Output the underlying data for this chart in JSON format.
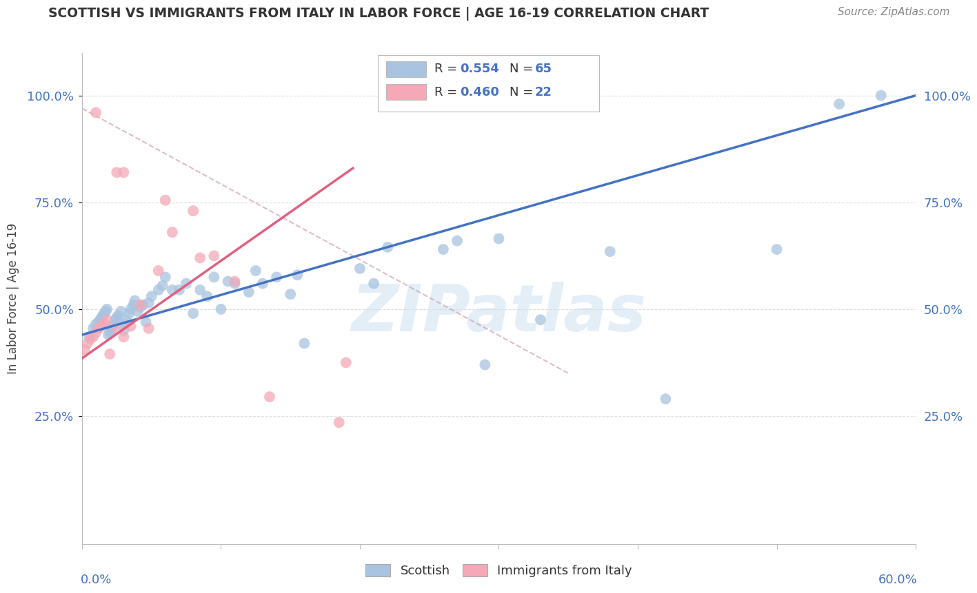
{
  "title": "SCOTTISH VS IMMIGRANTS FROM ITALY IN LABOR FORCE | AGE 16-19 CORRELATION CHART",
  "source": "Source: ZipAtlas.com",
  "ylabel": "In Labor Force | Age 16-19",
  "watermark": "ZIPatlas",
  "legend_r_scottish": "0.554",
  "legend_n_scottish": "65",
  "legend_r_italy": "0.460",
  "legend_n_italy": "22",
  "scottish_color": "#a8c4e0",
  "italy_color": "#f4a8b8",
  "line_blue": "#4472c4",
  "line_pink": "#e06080",
  "line_dashed_color": "#d0a0b0",
  "xlim": [
    0.0,
    0.6
  ],
  "ylim": [
    -0.05,
    1.1
  ],
  "blue_line_x0": 0.0,
  "blue_line_y0": 0.44,
  "blue_line_x1": 0.6,
  "blue_line_y1": 1.0,
  "pink_line_x0": 0.0,
  "pink_line_y0": 0.385,
  "pink_line_x1": 0.195,
  "pink_line_y1": 0.83,
  "dashed_line_x0": 0.0,
  "dashed_line_y0": 0.97,
  "dashed_line_x1": 0.35,
  "dashed_line_y1": 0.35,
  "scottish_x": [
    0.005,
    0.008,
    0.01,
    0.012,
    0.013,
    0.014,
    0.015,
    0.016,
    0.017,
    0.018,
    0.019,
    0.02,
    0.021,
    0.022,
    0.023,
    0.024,
    0.025,
    0.026,
    0.028,
    0.03,
    0.031,
    0.032,
    0.034,
    0.035,
    0.037,
    0.038,
    0.04,
    0.042,
    0.044,
    0.046,
    0.048,
    0.05,
    0.055,
    0.058,
    0.06,
    0.065,
    0.07,
    0.075,
    0.08,
    0.085,
    0.09,
    0.095,
    0.1,
    0.105,
    0.11,
    0.12,
    0.125,
    0.13,
    0.14,
    0.15,
    0.155,
    0.16,
    0.2,
    0.21,
    0.22,
    0.26,
    0.27,
    0.29,
    0.3,
    0.33,
    0.38,
    0.42,
    0.5,
    0.545,
    0.575
  ],
  "scottish_y": [
    0.435,
    0.455,
    0.465,
    0.47,
    0.475,
    0.48,
    0.485,
    0.49,
    0.495,
    0.5,
    0.44,
    0.445,
    0.45,
    0.46,
    0.465,
    0.475,
    0.48,
    0.485,
    0.495,
    0.45,
    0.465,
    0.475,
    0.49,
    0.5,
    0.51,
    0.52,
    0.495,
    0.505,
    0.51,
    0.47,
    0.515,
    0.53,
    0.545,
    0.555,
    0.575,
    0.545,
    0.545,
    0.56,
    0.49,
    0.545,
    0.53,
    0.575,
    0.5,
    0.565,
    0.56,
    0.54,
    0.59,
    0.56,
    0.575,
    0.535,
    0.58,
    0.42,
    0.595,
    0.56,
    0.645,
    0.64,
    0.66,
    0.37,
    0.665,
    0.475,
    0.635,
    0.29,
    0.64,
    0.98,
    1.0
  ],
  "italy_x": [
    0.002,
    0.004,
    0.006,
    0.008,
    0.01,
    0.012,
    0.014,
    0.016,
    0.018,
    0.02,
    0.025,
    0.03,
    0.035,
    0.042,
    0.048,
    0.055,
    0.065,
    0.08,
    0.095,
    0.11,
    0.135,
    0.19
  ],
  "italy_y": [
    0.405,
    0.42,
    0.43,
    0.435,
    0.445,
    0.455,
    0.46,
    0.465,
    0.475,
    0.395,
    0.455,
    0.435,
    0.46,
    0.51,
    0.455,
    0.59,
    0.68,
    0.73,
    0.625,
    0.565,
    0.295,
    0.375
  ],
  "italy_x_extra": [
    0.01,
    0.025,
    0.03,
    0.06,
    0.085,
    0.185
  ],
  "italy_y_extra": [
    0.96,
    0.82,
    0.82,
    0.755,
    0.62,
    0.235
  ]
}
